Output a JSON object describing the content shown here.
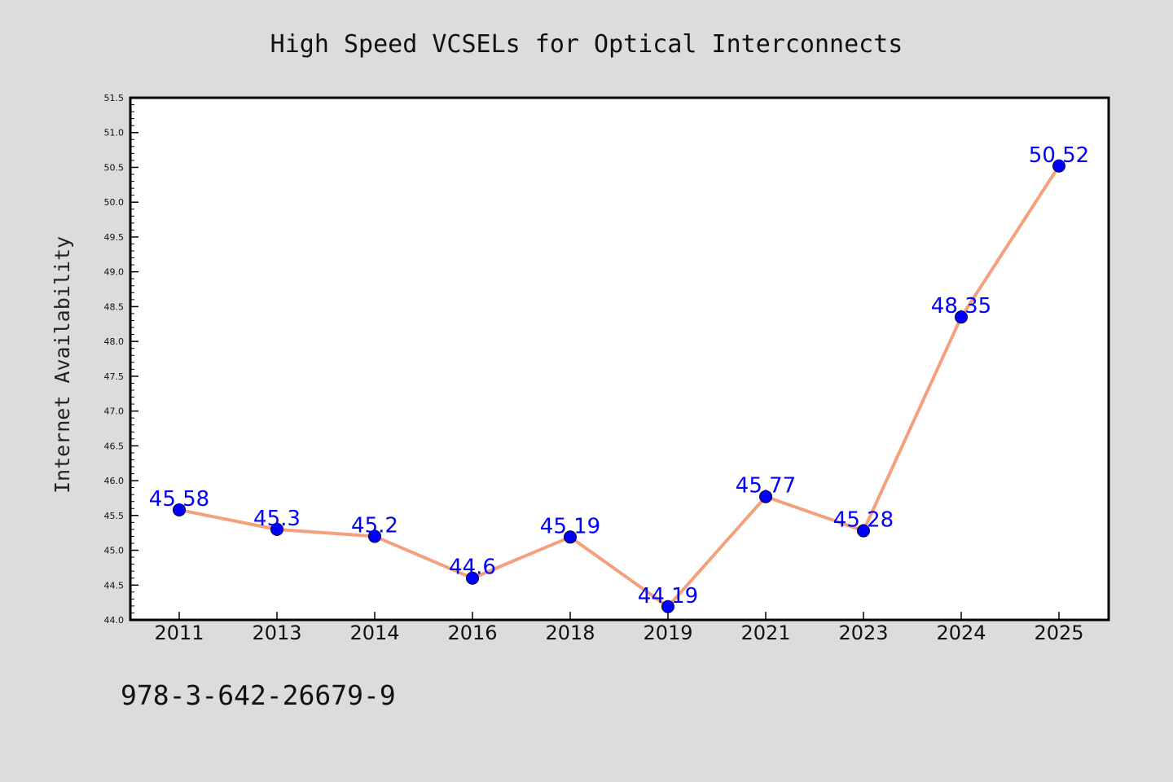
{
  "footnote": "978-3-642-26679-9",
  "colors": {
    "background": "#dcdcdc",
    "plot_background": "#ffffff",
    "line": "#f4a07c",
    "marker": "#0000ff",
    "data_label": "#0000ff"
  },
  "chart_data": {
    "type": "line",
    "title": "High Speed VCSELs for Optical Interconnects",
    "xlabel": "",
    "ylabel": "Internet Availability",
    "categories": [
      "2011",
      "2013",
      "2014",
      "2016",
      "2018",
      "2019",
      "2021",
      "2023",
      "2024",
      "2025"
    ],
    "series": [
      {
        "values": [
          45.58,
          45.3,
          45.2,
          44.6,
          45.19,
          44.19,
          45.77,
          45.28,
          48.35,
          50.52
        ],
        "labels": [
          "45.58",
          "45.3",
          "45.2",
          "44.6",
          "45.19",
          "44.19",
          "45.77",
          "45.28",
          "48.35",
          "50.52"
        ]
      }
    ],
    "ylim": [
      44.0,
      51.5
    ],
    "yticks": [
      "44.0",
      "44.5",
      "45.0",
      "45.5",
      "46.0",
      "46.5",
      "47.0",
      "47.5",
      "48.0",
      "48.5",
      "49.0",
      "49.5",
      "50.0",
      "50.5",
      "51.0",
      "51.5"
    ],
    "grid": false,
    "legend": "none"
  }
}
